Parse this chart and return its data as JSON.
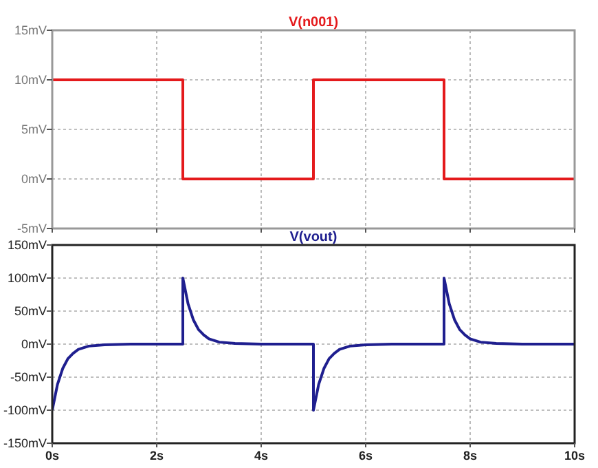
{
  "chart_data": [
    {
      "type": "line",
      "title": "V(n001)",
      "xlim": [
        0,
        10
      ],
      "xticks": [
        {
          "value": 0,
          "label": null
        },
        {
          "value": 2,
          "label": null
        },
        {
          "value": 4,
          "label": null
        },
        {
          "value": 6,
          "label": null
        },
        {
          "value": 8,
          "label": null
        },
        {
          "value": 10,
          "label": null
        }
      ],
      "ylim": [
        -5,
        15
      ],
      "yticks": [
        {
          "value": -5,
          "label": "-5mV"
        },
        {
          "value": 0,
          "label": "0mV"
        },
        {
          "value": 5,
          "label": "5mV"
        },
        {
          "value": 10,
          "label": "10mV"
        },
        {
          "value": 15,
          "label": "15mV"
        }
      ],
      "tick_labels": "y",
      "grid": true,
      "series": [
        {
          "color": "#e41a1c",
          "x": [
            0,
            2.5,
            2.5,
            5,
            5,
            7.5,
            7.5,
            10
          ],
          "values": [
            10,
            10,
            0,
            0,
            10,
            10,
            0,
            0
          ]
        }
      ]
    },
    {
      "type": "line",
      "title": "V(vout)",
      "xlim": [
        0,
        10
      ],
      "xticks": [
        {
          "value": 0,
          "label": "0s"
        },
        {
          "value": 2,
          "label": "2s"
        },
        {
          "value": 4,
          "label": "4s"
        },
        {
          "value": 6,
          "label": "6s"
        },
        {
          "value": 8,
          "label": "8s"
        },
        {
          "value": 10,
          "label": "10s"
        }
      ],
      "ylim": [
        -150,
        150
      ],
      "yticks": [
        {
          "value": -150,
          "label": "-150mV"
        },
        {
          "value": -100,
          "label": "-100mV"
        },
        {
          "value": -50,
          "label": "-50mV"
        },
        {
          "value": 0,
          "label": "0mV"
        },
        {
          "value": 50,
          "label": "50mV"
        },
        {
          "value": 100,
          "label": "100mV"
        },
        {
          "value": 150,
          "label": "150mV"
        }
      ],
      "grid": true,
      "series": [
        {
          "color": "#1f1f8f",
          "x": [
            0,
            0.1,
            0.2,
            0.3,
            0.4,
            0.5,
            0.7,
            1,
            1.5,
            2.5,
            2.5,
            2.6,
            2.7,
            2.8,
            2.9,
            3,
            3.2,
            3.5,
            4,
            5,
            5,
            5.1,
            5.2,
            5.3,
            5.4,
            5.5,
            5.7,
            6,
            6.5,
            7.5,
            7.5,
            7.6,
            7.7,
            7.8,
            7.9,
            8,
            8.2,
            8.5,
            9,
            10
          ],
          "values": [
            -100,
            -61,
            -37,
            -22,
            -14,
            -8,
            -3,
            -1,
            0,
            0,
            100,
            61,
            37,
            22,
            14,
            8,
            3,
            1,
            0,
            0,
            -100,
            -61,
            -37,
            -22,
            -14,
            -8,
            -3,
            -1,
            0,
            0,
            100,
            61,
            37,
            22,
            14,
            8,
            3,
            1,
            0,
            0
          ]
        }
      ]
    }
  ]
}
